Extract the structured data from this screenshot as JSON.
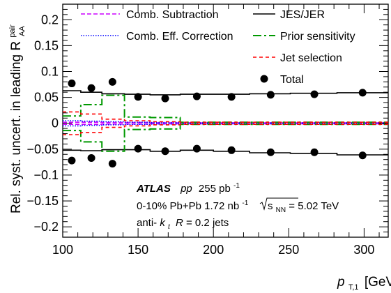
{
  "chart_data": {
    "type": "step",
    "xlabel_main": "p",
    "xlabel_sub": "T,1",
    "xlabel_unit": "[GeV]",
    "ylabel_main": "Rel. syst. uncert. in leading R",
    "ylabel_sup": "pair",
    "ylabel_sub": "AA",
    "xlim": [
      100,
      316
    ],
    "ylim": [
      -0.22,
      0.23
    ],
    "xticks": [
      100,
      150,
      200,
      250,
      300
    ],
    "yticks": [
      -0.2,
      -0.15,
      -0.1,
      -0.05,
      0,
      0.05,
      0.1,
      0.15,
      0.2
    ],
    "ytick_labels": [
      "−0.2",
      "−0.15",
      "−0.1",
      "−0.05",
      "0",
      "0.05",
      "0.1",
      "0.15",
      "0.2"
    ],
    "bin_edges": [
      100,
      112,
      126,
      141,
      158,
      178,
      200,
      224,
      251,
      282,
      316
    ],
    "series": [
      {
        "name": "Comb. Subtraction",
        "color": "#cc00ff",
        "dash": "6,3",
        "width": 1.6,
        "values": [
          0.002,
          0.002,
          0.0015,
          0.0015,
          0.001,
          0.001,
          0.001,
          0.001,
          0.001,
          0.001
        ],
        "symmetric": true
      },
      {
        "name": "Comb. Eff. Correction",
        "color": "#0000ff",
        "dash": "1.5,2",
        "width": 1.6,
        "values": [
          0.005,
          0.004,
          0.003,
          0.002,
          0.0015,
          0.001,
          0.001,
          0.001,
          0.001,
          0.001
        ],
        "symmetric": true
      },
      {
        "name": "JES/JER",
        "color": "#000000",
        "dash": "",
        "width": 1.6,
        "values": [
          0.063,
          0.06,
          0.057,
          0.056,
          0.055,
          0.056,
          0.056,
          0.057,
          0.058,
          0.059
        ],
        "lower": [
          -0.052,
          -0.053,
          -0.051,
          -0.051,
          -0.054,
          -0.052,
          -0.054,
          -0.057,
          -0.058,
          -0.061
        ]
      },
      {
        "name": "Prior sensitivity",
        "color": "#009900",
        "dash": "12,4,3,4",
        "width": 2,
        "values": [
          0.014,
          0.036,
          0.054,
          0.012,
          0.011,
          0.002,
          0.002,
          0.002,
          0.002,
          0.002
        ],
        "symmetric": true
      },
      {
        "name": "Jet selection",
        "color": "#ff0000",
        "dash": "5,4",
        "width": 1.6,
        "values": [
          0.022,
          0.018,
          0.008,
          0.005,
          0.003,
          0.002,
          0.002,
          0.002,
          0.002,
          0.002
        ],
        "symmetric": true
      }
    ],
    "total": {
      "name": "Total",
      "x": [
        106,
        119,
        133,
        150,
        168,
        189,
        212,
        238,
        267,
        299
      ],
      "upper": [
        0.077,
        0.068,
        0.08,
        0.051,
        0.048,
        0.052,
        0.051,
        0.055,
        0.056,
        0.059
      ],
      "lower": [
        -0.072,
        -0.067,
        -0.078,
        -0.049,
        -0.054,
        -0.049,
        -0.052,
        -0.056,
        -0.056,
        -0.062
      ]
    },
    "annotation": {
      "atlas": "ATLAS",
      "pp": "pp",
      "pp_lumi": "255 pb",
      "pp_lumi_sup": "-1",
      "cent": "0-10%  Pb+Pb  1.72 nb",
      "cent_sup": "-1",
      "sqrt_s": "s",
      "sqrt_s_sub": "NN",
      "energy": " = 5.02 TeV",
      "jets_pre": "anti-",
      "jets_k": "k",
      "jets_t": "t",
      "jets_r": "R",
      "jets_post": " = 0.2 jets"
    }
  }
}
